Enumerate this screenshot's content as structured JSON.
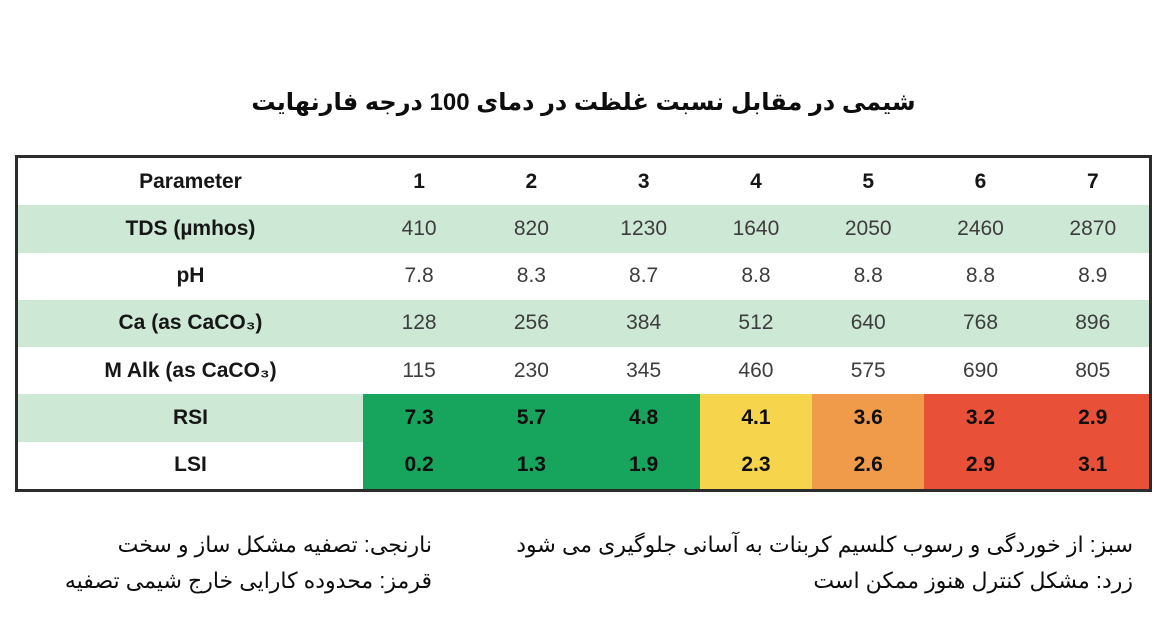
{
  "chart_data": {
    "type": "table",
    "title": "شیمی در مقابل نسبت غلظت در دمای 100 درجه فارنهایت",
    "columns": [
      "Parameter",
      "1",
      "2",
      "3",
      "4",
      "5",
      "6",
      "7"
    ],
    "rows": [
      {
        "label": "TDS (µmhos)",
        "values": [
          "410",
          "820",
          "1230",
          "1640",
          "2050",
          "2460",
          "2870"
        ],
        "cell_colors": null
      },
      {
        "label": "pH",
        "values": [
          "7.8",
          "8.3",
          "8.7",
          "8.8",
          "8.8",
          "8.8",
          "8.9"
        ],
        "cell_colors": null
      },
      {
        "label": "Ca (as CaCO₃)",
        "values": [
          "128",
          "256",
          "384",
          "512",
          "640",
          "768",
          "896"
        ],
        "cell_colors": null
      },
      {
        "label": "M Alk (as CaCO₃)",
        "values": [
          "115",
          "230",
          "345",
          "460",
          "575",
          "690",
          "805"
        ],
        "cell_colors": null
      },
      {
        "label": "RSI",
        "values": [
          "7.3",
          "5.7",
          "4.8",
          "4.1",
          "3.6",
          "3.2",
          "2.9"
        ],
        "cell_colors": [
          "green",
          "green",
          "green",
          "yellow",
          "orange",
          "red",
          "red"
        ]
      },
      {
        "label": "LSI",
        "values": [
          "0.2",
          "1.3",
          "1.9",
          "2.3",
          "2.6",
          "2.9",
          "3.1"
        ],
        "cell_colors": [
          "green",
          "green",
          "green",
          "yellow",
          "orange",
          "red",
          "red"
        ]
      }
    ],
    "legend_notes_right": [
      "سبز: از خوردگی و رسوب کلسیم کربنات به آسانی جلوگیری می شود",
      "زرد: مشکل کنترل هنوز ممکن است"
    ],
    "legend_notes_left": [
      "نارنجی: تصفیه مشکل ساز و سخت",
      "قرمز: محدوده کارایی خارج شیمی تصفیه"
    ]
  },
  "colors": {
    "row_band": "#cde8d4",
    "row_white": "#ffffff",
    "green": "#17a45c",
    "yellow": "#f6d44b",
    "orange": "#f09b4a",
    "red": "#e95038",
    "table_border": "#2c2c2c"
  }
}
